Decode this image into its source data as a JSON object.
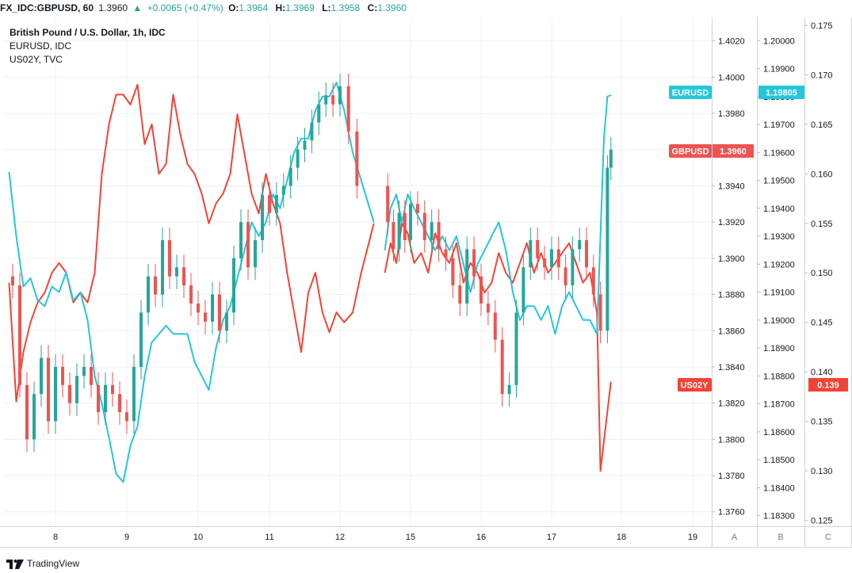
{
  "header": {
    "symbol": "FX_IDC:GBPUSD, 60",
    "last": "1.3960",
    "change_arrow": "▲",
    "change": "+0.0065 (+0.47%)",
    "o_label": "O:",
    "o_value": "1.3964",
    "h_label": "H:",
    "h_value": "1.3969",
    "l_label": "L:",
    "l_value": "1.3958",
    "c_label": "C:",
    "c_value": "1.3960"
  },
  "legend": {
    "main": "British Pound / U.S. Dollar, 1h, IDC",
    "series2": "EURUSD, IDC",
    "series3": "US02Y, TVC"
  },
  "axes": {
    "a_ticks": [
      "1.4020",
      "1.4000",
      "1.3980",
      "1.3960",
      "1.3940",
      "1.3920",
      "1.3900",
      "1.3880",
      "1.3860",
      "1.3840",
      "1.3820",
      "1.3800",
      "1.3780",
      "1.3760"
    ],
    "b_ticks": [
      "1.20000",
      "1.19900",
      "1.19800",
      "1.19700",
      "1.19600",
      "1.19500",
      "1.19400",
      "1.19300",
      "1.19200",
      "1.19100",
      "1.19000",
      "1.18900",
      "1.18800",
      "1.18700",
      "1.18600",
      "1.18500",
      "1.18400",
      "1.18300"
    ],
    "c_ticks": [
      "0.175",
      "0.170",
      "0.165",
      "0.160",
      "0.155",
      "0.150",
      "0.145",
      "0.140",
      "0.135",
      "0.130",
      "0.125"
    ],
    "x_ticks": [
      "8",
      "9",
      "10",
      "11",
      "12",
      "15",
      "16",
      "17",
      "18",
      "19"
    ],
    "scale_letters": [
      "A",
      "B",
      "C"
    ]
  },
  "tags": {
    "eurusd_label": "EURUSD",
    "eurusd_value": "1.19805",
    "gbpusd_label": "GBPUSD",
    "gbpusd_value": "1.3960",
    "us02y_label": "US02Y",
    "us02y_value": "0.139"
  },
  "colors": {
    "up": "#26a69a",
    "down": "#ef5350",
    "eurusd": "#26c6da",
    "us02y": "#f44336",
    "grid": "#eef0f3"
  },
  "footer": {
    "brand": "TradingView",
    "logo_icon": "tradingview-logo-icon"
  },
  "chart_data": {
    "type": "line",
    "title": "British Pound / U.S. Dollar, 1h, IDC",
    "x_ticks": [
      "8",
      "9",
      "10",
      "11",
      "12",
      "15",
      "16",
      "17",
      "18",
      "19"
    ],
    "series": [
      {
        "name": "GBPUSD",
        "style": "candlestick",
        "scale": "A",
        "ylim": [
          1.3752,
          1.4033
        ],
        "points": [
          [
            7.4,
            1.3885
          ],
          [
            7.5,
            1.383
          ],
          [
            7.6,
            1.38
          ],
          [
            7.7,
            1.3825
          ],
          [
            7.8,
            1.3845
          ],
          [
            7.9,
            1.381
          ],
          [
            8.0,
            1.384
          ],
          [
            8.1,
            1.383
          ],
          [
            8.2,
            1.382
          ],
          [
            8.3,
            1.3835
          ],
          [
            8.4,
            1.384
          ],
          [
            8.5,
            1.383
          ],
          [
            8.6,
            1.3815
          ],
          [
            8.7,
            1.383
          ],
          [
            8.8,
            1.3825
          ],
          [
            8.9,
            1.3815
          ],
          [
            9.0,
            1.381
          ],
          [
            9.1,
            1.384
          ],
          [
            9.2,
            1.387
          ],
          [
            9.3,
            1.389
          ],
          [
            9.4,
            1.388
          ],
          [
            9.5,
            1.391
          ],
          [
            9.6,
            1.389
          ],
          [
            9.7,
            1.3895
          ],
          [
            9.8,
            1.3885
          ],
          [
            9.9,
            1.3875
          ],
          [
            10.0,
            1.387
          ],
          [
            10.1,
            1.3865
          ],
          [
            10.2,
            1.388
          ],
          [
            10.3,
            1.386
          ],
          [
            10.4,
            1.387
          ],
          [
            10.5,
            1.39
          ],
          [
            10.6,
            1.392
          ],
          [
            10.7,
            1.3895
          ],
          [
            10.8,
            1.391
          ],
          [
            10.9,
            1.3935
          ],
          [
            11.0,
            1.3925
          ],
          [
            11.1,
            1.3935
          ],
          [
            11.2,
            1.394
          ],
          [
            11.3,
            1.395
          ],
          [
            11.4,
            1.396
          ],
          [
            11.5,
            1.3965
          ],
          [
            11.6,
            1.3975
          ],
          [
            11.7,
            1.3985
          ],
          [
            11.8,
            1.399
          ],
          [
            11.9,
            1.3985
          ],
          [
            12.0,
            1.3995
          ],
          [
            12.1,
            1.397
          ],
          [
            12.2,
            1.394
          ],
          [
            14.6,
            1.392
          ],
          [
            14.7,
            1.3905
          ],
          [
            14.8,
            1.3925
          ],
          [
            14.9,
            1.391
          ],
          [
            15.0,
            1.393
          ],
          [
            15.1,
            1.3925
          ],
          [
            15.2,
            1.391
          ],
          [
            15.3,
            1.392
          ],
          [
            15.4,
            1.3905
          ],
          [
            15.5,
            1.39
          ],
          [
            15.6,
            1.3885
          ],
          [
            15.7,
            1.3875
          ],
          [
            15.8,
            1.3905
          ],
          [
            15.9,
            1.389
          ],
          [
            16.0,
            1.3875
          ],
          [
            16.1,
            1.387
          ],
          [
            16.2,
            1.3855
          ],
          [
            16.3,
            1.3825
          ],
          [
            16.4,
            1.383
          ],
          [
            16.5,
            1.387
          ],
          [
            16.6,
            1.3895
          ],
          [
            16.7,
            1.391
          ],
          [
            16.8,
            1.39
          ],
          [
            16.9,
            1.3895
          ],
          [
            17.0,
            1.3905
          ],
          [
            17.1,
            1.3895
          ],
          [
            17.2,
            1.3885
          ],
          [
            17.3,
            1.3905
          ],
          [
            17.4,
            1.391
          ],
          [
            17.5,
            1.3895
          ],
          [
            17.6,
            1.388
          ],
          [
            17.7,
            1.386
          ],
          [
            17.8,
            1.395
          ],
          [
            17.85,
            1.396
          ]
        ]
      },
      {
        "name": "EURUSD",
        "style": "line",
        "scale": "B",
        "ylim": [
          1.18262,
          1.20083
        ],
        "points": [
          [
            7.35,
            1.1953
          ],
          [
            7.45,
            1.193
          ],
          [
            7.55,
            1.1912
          ],
          [
            7.65,
            1.1915
          ],
          [
            7.75,
            1.1907
          ],
          [
            7.85,
            1.1905
          ],
          [
            7.95,
            1.1912
          ],
          [
            8.05,
            1.191
          ],
          [
            8.15,
            1.1917
          ],
          [
            8.25,
            1.1907
          ],
          [
            8.35,
            1.191
          ],
          [
            8.45,
            1.19
          ],
          [
            8.55,
            1.188
          ],
          [
            8.65,
            1.187
          ],
          [
            8.75,
            1.1858
          ],
          [
            8.85,
            1.1845
          ],
          [
            8.95,
            1.1842
          ],
          [
            9.05,
            1.1855
          ],
          [
            9.15,
            1.1862
          ],
          [
            9.25,
            1.188
          ],
          [
            9.35,
            1.1892
          ],
          [
            9.45,
            1.1895
          ],
          [
            9.55,
            1.1898
          ],
          [
            9.65,
            1.1895
          ],
          [
            9.75,
            1.1895
          ],
          [
            9.85,
            1.1895
          ],
          [
            9.95,
            1.1885
          ],
          [
            10.05,
            1.188
          ],
          [
            10.15,
            1.1875
          ],
          [
            10.25,
            1.189
          ],
          [
            10.35,
            1.19
          ],
          [
            10.45,
            1.1905
          ],
          [
            10.55,
            1.1915
          ],
          [
            10.65,
            1.1925
          ],
          [
            10.75,
            1.1935
          ],
          [
            10.85,
            1.193
          ],
          [
            10.95,
            1.1935
          ],
          [
            11.05,
            1.1945
          ],
          [
            11.15,
            1.194
          ],
          [
            11.25,
            1.195
          ],
          [
            11.35,
            1.196
          ],
          [
            11.45,
            1.1965
          ],
          [
            11.55,
            1.1965
          ],
          [
            11.65,
            1.1975
          ],
          [
            11.75,
            1.198
          ],
          [
            11.85,
            1.198
          ],
          [
            11.95,
            1.1985
          ],
          [
            12.05,
            1.1975
          ],
          [
            12.15,
            1.196
          ],
          [
            12.25,
            1.195
          ],
          [
            12.4,
            1.1935
          ],
          [
            14.55,
            1.1925
          ],
          [
            14.65,
            1.194
          ],
          [
            14.75,
            1.1945
          ],
          [
            14.85,
            1.1935
          ],
          [
            14.95,
            1.1945
          ],
          [
            15.05,
            1.194
          ],
          [
            15.15,
            1.1935
          ],
          [
            15.25,
            1.193
          ],
          [
            15.35,
            1.1925
          ],
          [
            15.45,
            1.193
          ],
          [
            15.55,
            1.1925
          ],
          [
            15.65,
            1.193
          ],
          [
            15.75,
            1.192
          ],
          [
            15.85,
            1.191
          ],
          [
            15.95,
            1.192
          ],
          [
            16.05,
            1.1925
          ],
          [
            16.15,
            1.193
          ],
          [
            16.25,
            1.1935
          ],
          [
            16.35,
            1.1925
          ],
          [
            16.45,
            1.191
          ],
          [
            16.55,
            1.19
          ],
          [
            16.65,
            1.1905
          ],
          [
            16.75,
            1.1905
          ],
          [
            16.85,
            1.19
          ],
          [
            16.95,
            1.1905
          ],
          [
            17.05,
            1.1895
          ],
          [
            17.15,
            1.1905
          ],
          [
            17.25,
            1.191
          ],
          [
            17.35,
            1.1905
          ],
          [
            17.45,
            1.19
          ],
          [
            17.55,
            1.19
          ],
          [
            17.65,
            1.1895
          ],
          [
            17.75,
            1.1965
          ],
          [
            17.8,
            1.198
          ],
          [
            17.85,
            1.19805
          ]
        ]
      },
      {
        "name": "US02Y",
        "style": "line",
        "scale": "C",
        "ylim": [
          0.1244,
          0.1758
        ],
        "points": [
          [
            7.35,
            0.149
          ],
          [
            7.45,
            0.137
          ],
          [
            7.55,
            0.142
          ],
          [
            7.65,
            0.145
          ],
          [
            7.75,
            0.147
          ],
          [
            7.85,
            0.148
          ],
          [
            7.95,
            0.15
          ],
          [
            8.05,
            0.151
          ],
          [
            8.15,
            0.15
          ],
          [
            8.25,
            0.147
          ],
          [
            8.35,
            0.148
          ],
          [
            8.45,
            0.147
          ],
          [
            8.55,
            0.15
          ],
          [
            8.65,
            0.16
          ],
          [
            8.75,
            0.165
          ],
          [
            8.85,
            0.168
          ],
          [
            8.95,
            0.168
          ],
          [
            9.05,
            0.167
          ],
          [
            9.15,
            0.169
          ],
          [
            9.25,
            0.163
          ],
          [
            9.35,
            0.165
          ],
          [
            9.45,
            0.16
          ],
          [
            9.55,
            0.161
          ],
          [
            9.65,
            0.168
          ],
          [
            9.75,
            0.164
          ],
          [
            9.85,
            0.161
          ],
          [
            9.95,
            0.16
          ],
          [
            10.05,
            0.158
          ],
          [
            10.15,
            0.155
          ],
          [
            10.25,
            0.157
          ],
          [
            10.35,
            0.158
          ],
          [
            10.45,
            0.16
          ],
          [
            10.55,
            0.166
          ],
          [
            10.65,
            0.162
          ],
          [
            10.75,
            0.158
          ],
          [
            10.85,
            0.156
          ],
          [
            10.95,
            0.16
          ],
          [
            11.05,
            0.157
          ],
          [
            11.15,
            0.155
          ],
          [
            11.25,
            0.15
          ],
          [
            11.35,
            0.146
          ],
          [
            11.45,
            0.142
          ],
          [
            11.55,
            0.148
          ],
          [
            11.65,
            0.15
          ],
          [
            11.75,
            0.146
          ],
          [
            11.85,
            0.144
          ],
          [
            11.95,
            0.146
          ],
          [
            12.05,
            0.145
          ],
          [
            12.15,
            0.146
          ],
          [
            12.25,
            0.15
          ],
          [
            12.4,
            0.155
          ],
          [
            14.55,
            0.15
          ],
          [
            14.65,
            0.153
          ],
          [
            14.75,
            0.151
          ],
          [
            14.85,
            0.155
          ],
          [
            14.95,
            0.154
          ],
          [
            15.05,
            0.151
          ],
          [
            15.15,
            0.152
          ],
          [
            15.25,
            0.15
          ],
          [
            15.35,
            0.154
          ],
          [
            15.45,
            0.152
          ],
          [
            15.55,
            0.151
          ],
          [
            15.65,
            0.153
          ],
          [
            15.75,
            0.149
          ],
          [
            15.85,
            0.151
          ],
          [
            15.95,
            0.15
          ],
          [
            16.05,
            0.148
          ],
          [
            16.15,
            0.149
          ],
          [
            16.25,
            0.152
          ],
          [
            16.35,
            0.15
          ],
          [
            16.45,
            0.149
          ],
          [
            16.55,
            0.151
          ],
          [
            16.65,
            0.153
          ],
          [
            16.75,
            0.15
          ],
          [
            16.85,
            0.152
          ],
          [
            16.95,
            0.15
          ],
          [
            17.05,
            0.151
          ],
          [
            17.15,
            0.152
          ],
          [
            17.25,
            0.153
          ],
          [
            17.35,
            0.151
          ],
          [
            17.45,
            0.149
          ],
          [
            17.55,
            0.15
          ],
          [
            17.65,
            0.146
          ],
          [
            17.7,
            0.13
          ],
          [
            17.75,
            0.133
          ],
          [
            17.8,
            0.136
          ],
          [
            17.85,
            0.139
          ]
        ]
      }
    ]
  }
}
